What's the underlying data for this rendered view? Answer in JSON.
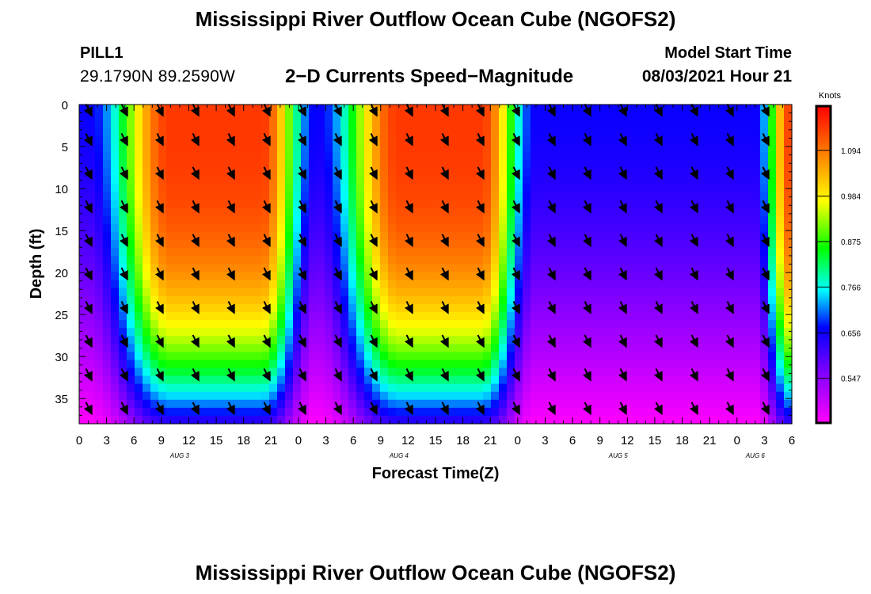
{
  "header": {
    "title": "Mississippi River Outflow Ocean Cube (NGOFS2)",
    "station_id": "PILL1",
    "station_coords": "29.1790N  89.2590W",
    "subtitle": "2−D Currents Speed−Magnitude",
    "model_start_label": "Model Start Time",
    "model_start_value": "08/03/2021 Hour 21"
  },
  "footer": {
    "title": "Mississippi River Outflow Ocean Cube (NGOFS2)"
  },
  "chart_data": {
    "type": "heatmap",
    "xlabel": "Forecast Time(Z)",
    "ylabel": "Depth (ft)",
    "x_range_hours_from_aug3_00z": [
      0,
      78
    ],
    "x_ticks": [
      "0",
      "3",
      "6",
      "9",
      "12",
      "15",
      "18",
      "21",
      "0",
      "3",
      "6",
      "9",
      "12",
      "15",
      "18",
      "21",
      "0",
      "3",
      "6",
      "9",
      "12",
      "15",
      "18",
      "21",
      "0",
      "3",
      "6"
    ],
    "date_labels": [
      {
        "label": "AUG 3",
        "hour": 11
      },
      {
        "label": "AUG 4",
        "hour": 35
      },
      {
        "label": "AUG 5",
        "hour": 59
      },
      {
        "label": "AUG 6",
        "hour": 74
      }
    ],
    "y_ticks": [
      0,
      5,
      10,
      15,
      20,
      25,
      30,
      35
    ],
    "ylim": [
      38,
      0
    ],
    "colorbar": {
      "label": "Knots",
      "ticks": [
        "1.094",
        "0.984",
        "0.875",
        "0.766",
        "0.656",
        "0.547"
      ],
      "min": 0.44,
      "max": 1.2
    },
    "speed_maxima_hours": [
      10,
      20,
      35,
      44,
      78
    ],
    "speed_minima_hours": [
      1,
      26,
      50,
      74
    ],
    "surface_speed_range": [
      0.66,
      1.15
    ],
    "bottom_speed_range": [
      0.44,
      0.62
    ],
    "vector_direction": "south-southeast"
  }
}
